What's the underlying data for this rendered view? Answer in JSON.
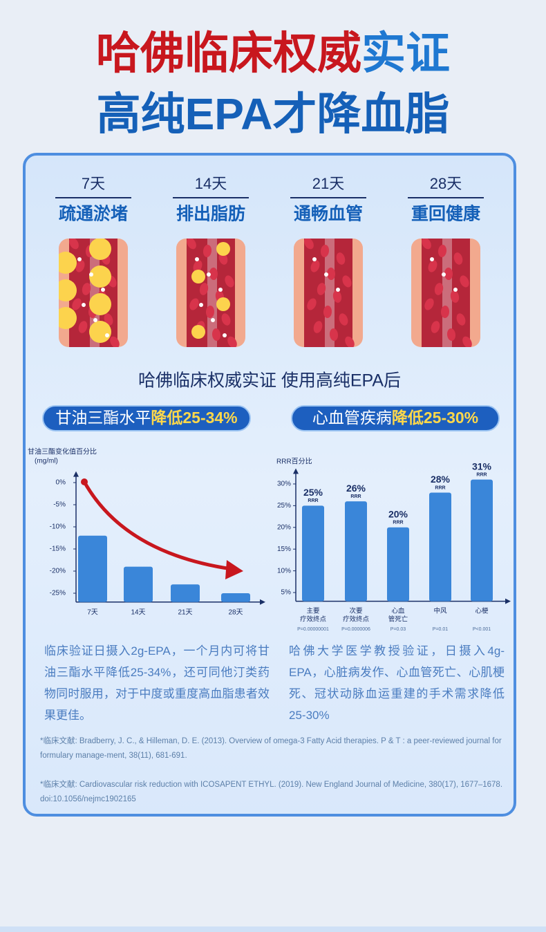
{
  "header": {
    "line1_red": "哈佛临床权威",
    "line1_blue": "实证",
    "line2": "高纯EPA才降血脂"
  },
  "stages": [
    {
      "day": "7天",
      "label": "疏通淤堵"
    },
    {
      "day": "14天",
      "label": "排出脂肪"
    },
    {
      "day": "21天",
      "label": "通畅血管"
    },
    {
      "day": "28天",
      "label": "重回健康"
    }
  ],
  "subtitle": "哈佛临床权威实证 使用高纯EPA后",
  "badges": [
    {
      "text": "甘油三酯水平",
      "highlight": "降低25-34%"
    },
    {
      "text": "心血管疾病",
      "highlight": "降低25-30%"
    }
  ],
  "chart_data": [
    {
      "type": "bar",
      "title": "甘油三酯变化值百分比",
      "unit": "(mg/ml)",
      "color": "#3a86d9",
      "categories": [
        "7天",
        "14天",
        "21天",
        "28天"
      ],
      "values": [
        -12,
        -19,
        -23,
        -25
      ],
      "ylim": [
        -27,
        1
      ],
      "yticks": [
        {
          "value": 0,
          "label": "0%"
        },
        {
          "value": -5,
          "label": "-5%"
        },
        {
          "value": -10,
          "label": "-10%"
        },
        {
          "value": -15,
          "label": "-15%"
        },
        {
          "value": -20,
          "label": "-20%"
        },
        {
          "value": -25,
          "label": "-25%"
        }
      ]
    },
    {
      "type": "bar",
      "title": "RRR百分比",
      "color": "#3a86d9",
      "categories": [
        [
          "主要",
          "疗效终点"
        ],
        [
          "次要",
          "疗效终点"
        ],
        [
          "心血",
          "管死亡"
        ],
        [
          "中风"
        ],
        [
          "心梗"
        ]
      ],
      "pvalues": [
        "P=0.00000001",
        "P=0.0000006",
        "P=0.03",
        "P=0.01",
        "P<0.001"
      ],
      "values": [
        25,
        26,
        20,
        28,
        31
      ],
      "value_labels": [
        "25%",
        "26%",
        "20%",
        "28%",
        "31%"
      ],
      "bar_labels": [
        "RRR",
        "RRR",
        "RRR",
        "RRR",
        "RRR"
      ],
      "ylim": [
        3,
        32
      ],
      "yticks": [
        {
          "value": 5,
          "label": "5%"
        },
        {
          "value": 10,
          "label": "10%"
        },
        {
          "value": 15,
          "label": "15%"
        },
        {
          "value": 20,
          "label": "20%"
        },
        {
          "value": 25,
          "label": "25%"
        },
        {
          "value": 30,
          "label": "30%"
        }
      ]
    }
  ],
  "descriptions": [
    "临床验证日摄入2g-EPA，一个月内可将甘油三酯水平降低25-34%，还可同他汀类药物同时服用，对于中度或重度高血脂患者效果更佳。",
    "哈佛大学医学教授验证，日摄入4g-EPA，心脏病发作、心血管死亡、心肌梗死、冠状动脉血运重建的手术需求降低25-30%"
  ],
  "references": [
    "*临床文献: Bradberry, J. C., & Hilleman, D. E. (2013). Overview of omega-3 Fatty Acid therapies. P & T : a peer-reviewed journal for formulary manage-ment, 38(11), 681-691.",
    "*临床文献: Cardiovascular risk reduction with ICOSAPENT ETHYL. (2019). New England Journal of Medicine, 380(17), 1677–1678. doi:10.1056/nejmc1902165"
  ]
}
